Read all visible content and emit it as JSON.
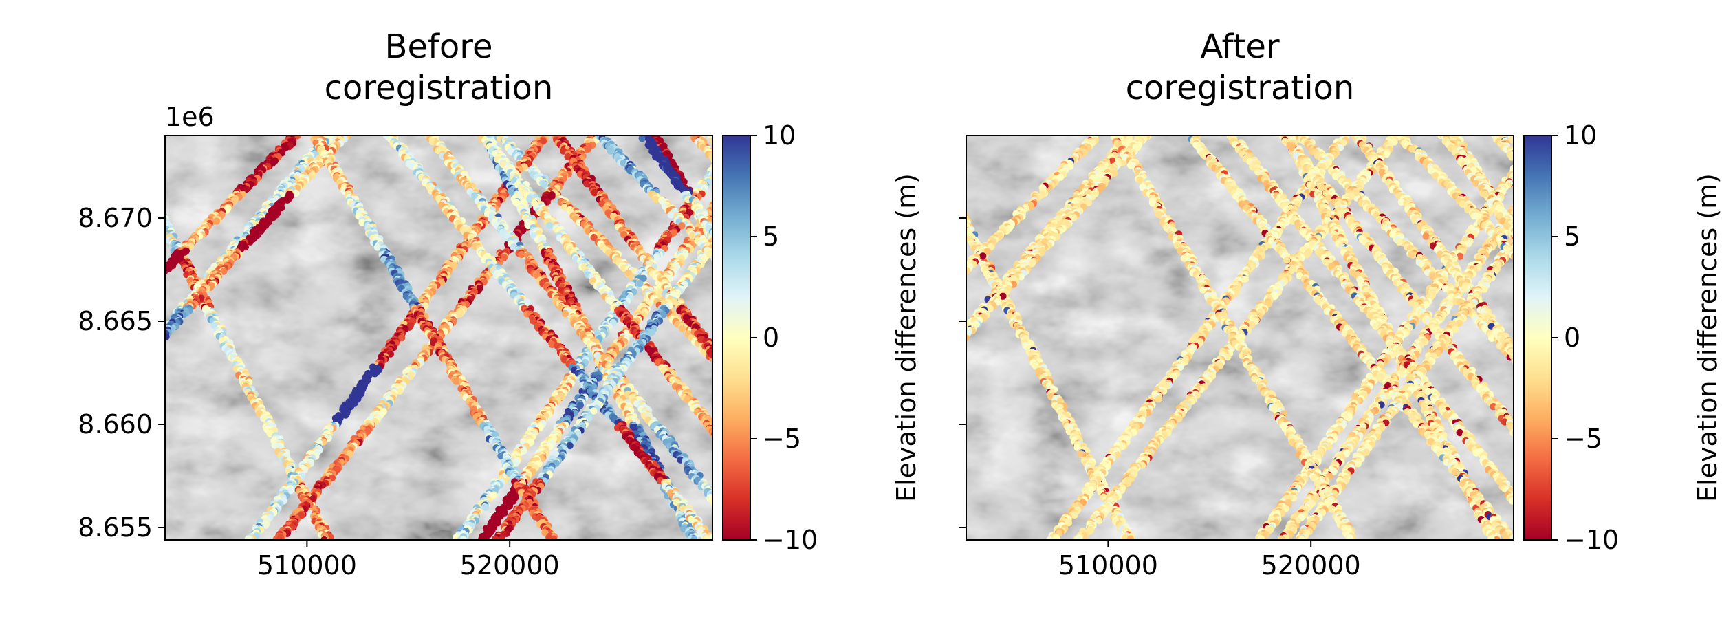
{
  "chart_data": [
    {
      "type": "map-scatter",
      "title_lines": [
        "Before",
        "coregistration"
      ],
      "x_ticks": [
        510000,
        520000
      ],
      "y_ticks": [
        8.655,
        8.66,
        8.665,
        8.67
      ],
      "y_tick_labels": [
        "8.655",
        "8.660",
        "8.665",
        "8.670"
      ],
      "y_offset_label": "1e6",
      "xlim": [
        503000,
        530000
      ],
      "ylim": [
        8654400,
        8674000
      ],
      "colorbar": {
        "label": "Elevation differences (m)",
        "range": [
          -10,
          10
        ],
        "ticks": [
          10,
          5,
          0,
          -5,
          -10
        ],
        "tick_labels": [
          "10",
          "5",
          "0",
          "−5",
          "−10"
        ],
        "colormap": "RdYlBu"
      },
      "background": "hillshade"
    },
    {
      "type": "map-scatter",
      "title_lines": [
        "After",
        "coregistration"
      ],
      "x_ticks": [
        510000,
        520000
      ],
      "y_ticks": [
        8.655,
        8.66,
        8.665,
        8.67
      ],
      "y_tick_labels": [],
      "xlim": [
        503000,
        530000
      ],
      "ylim": [
        8654400,
        8674000
      ],
      "colorbar": {
        "label": "Elevation differences (m)",
        "range": [
          -10,
          10
        ],
        "ticks": [
          10,
          5,
          0,
          -5,
          -10
        ],
        "tick_labels": [
          "10",
          "5",
          "0",
          "−5",
          "−10"
        ],
        "colormap": "RdYlBu"
      },
      "background": "hillshade"
    }
  ]
}
